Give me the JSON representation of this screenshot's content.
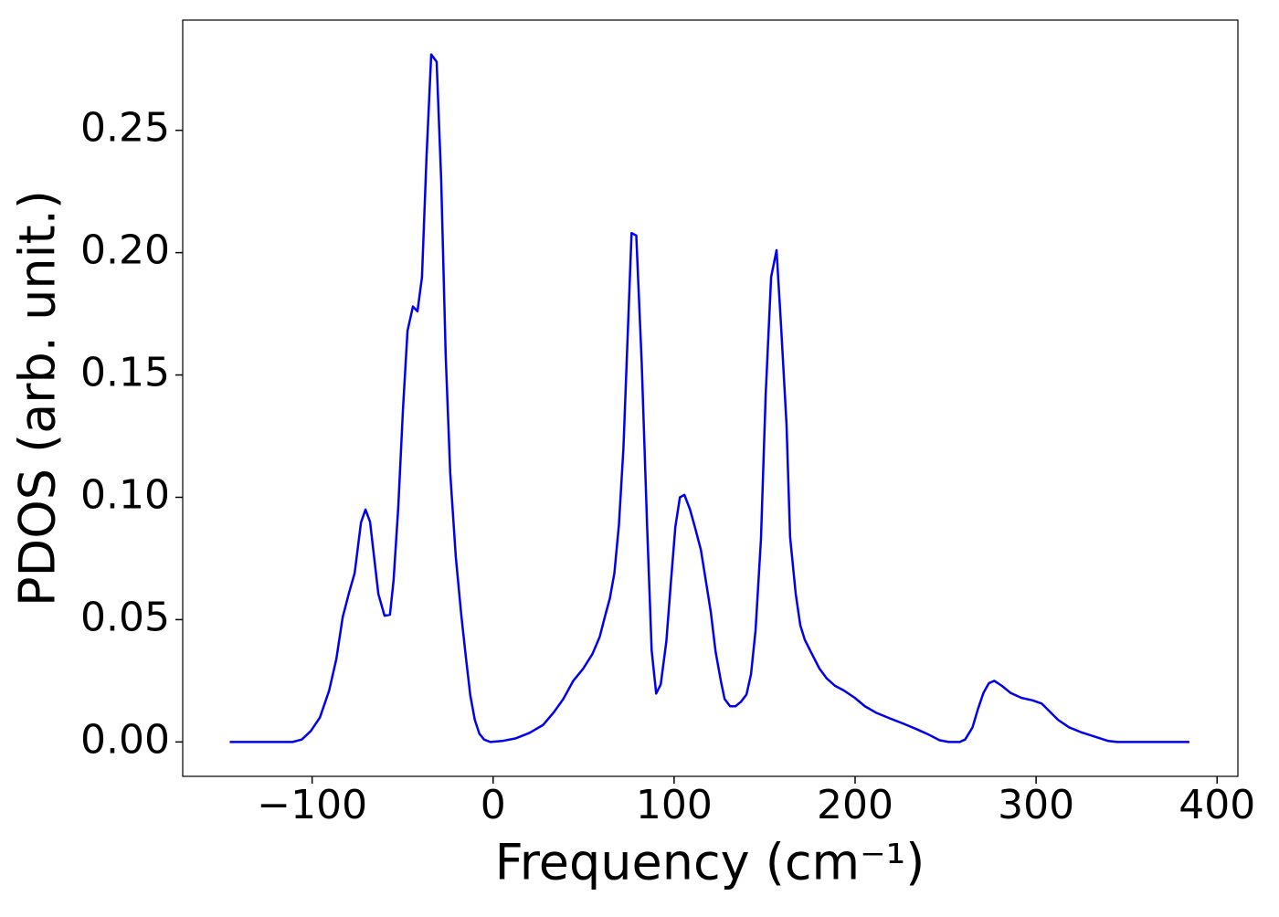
{
  "chart_data": {
    "type": "line",
    "xlabel": "Frequency (cm⁻¹)",
    "ylabel": "PDOS (arb. unit.)",
    "xlim": [
      -171.5,
      411.5
    ],
    "ylim": [
      -0.01405,
      0.29505
    ],
    "xticks": [
      {
        "value": -100,
        "label": "−100"
      },
      0,
      100,
      200,
      300,
      400
    ],
    "yticks": [
      {
        "value": 0,
        "label": "0.00"
      },
      0.05,
      {
        "value": 0.1,
        "label": "0.10"
      },
      0.15,
      {
        "value": 0.2,
        "label": "0.20"
      },
      0.25
    ],
    "x": [
      -145.5,
      -110.8,
      -105.7,
      -100.7,
      -95.7,
      -90.6,
      -86.6,
      -83.1,
      -79.6,
      -76.5,
      -73.0,
      -70.5,
      -68.0,
      -63.4,
      -60.0,
      -57.0,
      -55.0,
      -52.4,
      -49.8,
      -47.3,
      -44.3,
      -41.8,
      -39.3,
      -36.8,
      -34.2,
      -31.2,
      -28.7,
      -26.2,
      -23.7,
      -20.6,
      -17.6,
      -15.1,
      -12.6,
      -10.1,
      -7.6,
      -5.0,
      -1.5,
      5.0,
      12.6,
      20.1,
      27.7,
      33.7,
      38.8,
      44.3,
      49.8,
      54.9,
      58.9,
      61.9,
      64.5,
      67.0,
      69.5,
      72.0,
      74.5,
      76.5,
      79.1,
      82.1,
      85.1,
      87.6,
      90.1,
      92.6,
      95.7,
      98.2,
      100.7,
      103.2,
      105.7,
      108.8,
      111.8,
      114.8,
      117.3,
      120.3,
      122.9,
      125.9,
      127.9,
      130.9,
      133.9,
      136.9,
      140.0,
      142.5,
      145.0,
      148.0,
      150.6,
      153.6,
      156.6,
      159.1,
      162.1,
      164.1,
      167.2,
      169.7,
      172.2,
      176.2,
      180.3,
      184.3,
      188.8,
      193.9,
      199.9,
      205.4,
      211.5,
      219.0,
      226.6,
      234.1,
      240.7,
      246.7,
      251.8,
      257.8,
      260.8,
      264.9,
      267.9,
      270.9,
      273.9,
      276.9,
      281.0,
      286.0,
      292.0,
      298.1,
      303.1,
      307.2,
      312.2,
      318.2,
      324.8,
      332.3,
      339.9,
      344.9,
      384.7
    ],
    "series": [
      {
        "color": "#0000ee",
        "values": [
          0,
          0,
          0.001,
          0.0045,
          0.01,
          0.021,
          0.034,
          0.051,
          0.061,
          0.069,
          0.0897,
          0.095,
          0.09,
          0.0605,
          0.0516,
          0.052,
          0.066,
          0.096,
          0.136,
          0.168,
          0.178,
          0.176,
          0.19,
          0.239,
          0.281,
          0.278,
          0.23,
          0.158,
          0.11,
          0.0755,
          0.052,
          0.035,
          0.019,
          0.009,
          0.0034,
          0.001,
          0,
          0.0004,
          0.0015,
          0.0037,
          0.007,
          0.0123,
          0.0176,
          0.025,
          0.03,
          0.036,
          0.043,
          0.0516,
          0.0587,
          0.069,
          0.0886,
          0.12,
          0.169,
          0.208,
          0.207,
          0.155,
          0.088,
          0.0374,
          0.0198,
          0.0235,
          0.041,
          0.065,
          0.088,
          0.1,
          0.101,
          0.095,
          0.087,
          0.0785,
          0.067,
          0.053,
          0.037,
          0.0247,
          0.0176,
          0.0146,
          0.0146,
          0.0164,
          0.0194,
          0.0277,
          0.0456,
          0.083,
          0.142,
          0.19,
          0.201,
          0.17,
          0.13,
          0.0837,
          0.0605,
          0.0478,
          0.0418,
          0.0359,
          0.03,
          0.026,
          0.023,
          0.021,
          0.018,
          0.0146,
          0.012,
          0.0097,
          0.0075,
          0.0052,
          0.003,
          0.0007,
          0,
          0,
          0.001,
          0.006,
          0.0135,
          0.02,
          0.024,
          0.025,
          0.023,
          0.02,
          0.018,
          0.017,
          0.0157,
          0.0127,
          0.009,
          0.006,
          0.004,
          0.0022,
          0.0004,
          0,
          0
        ]
      }
    ]
  }
}
